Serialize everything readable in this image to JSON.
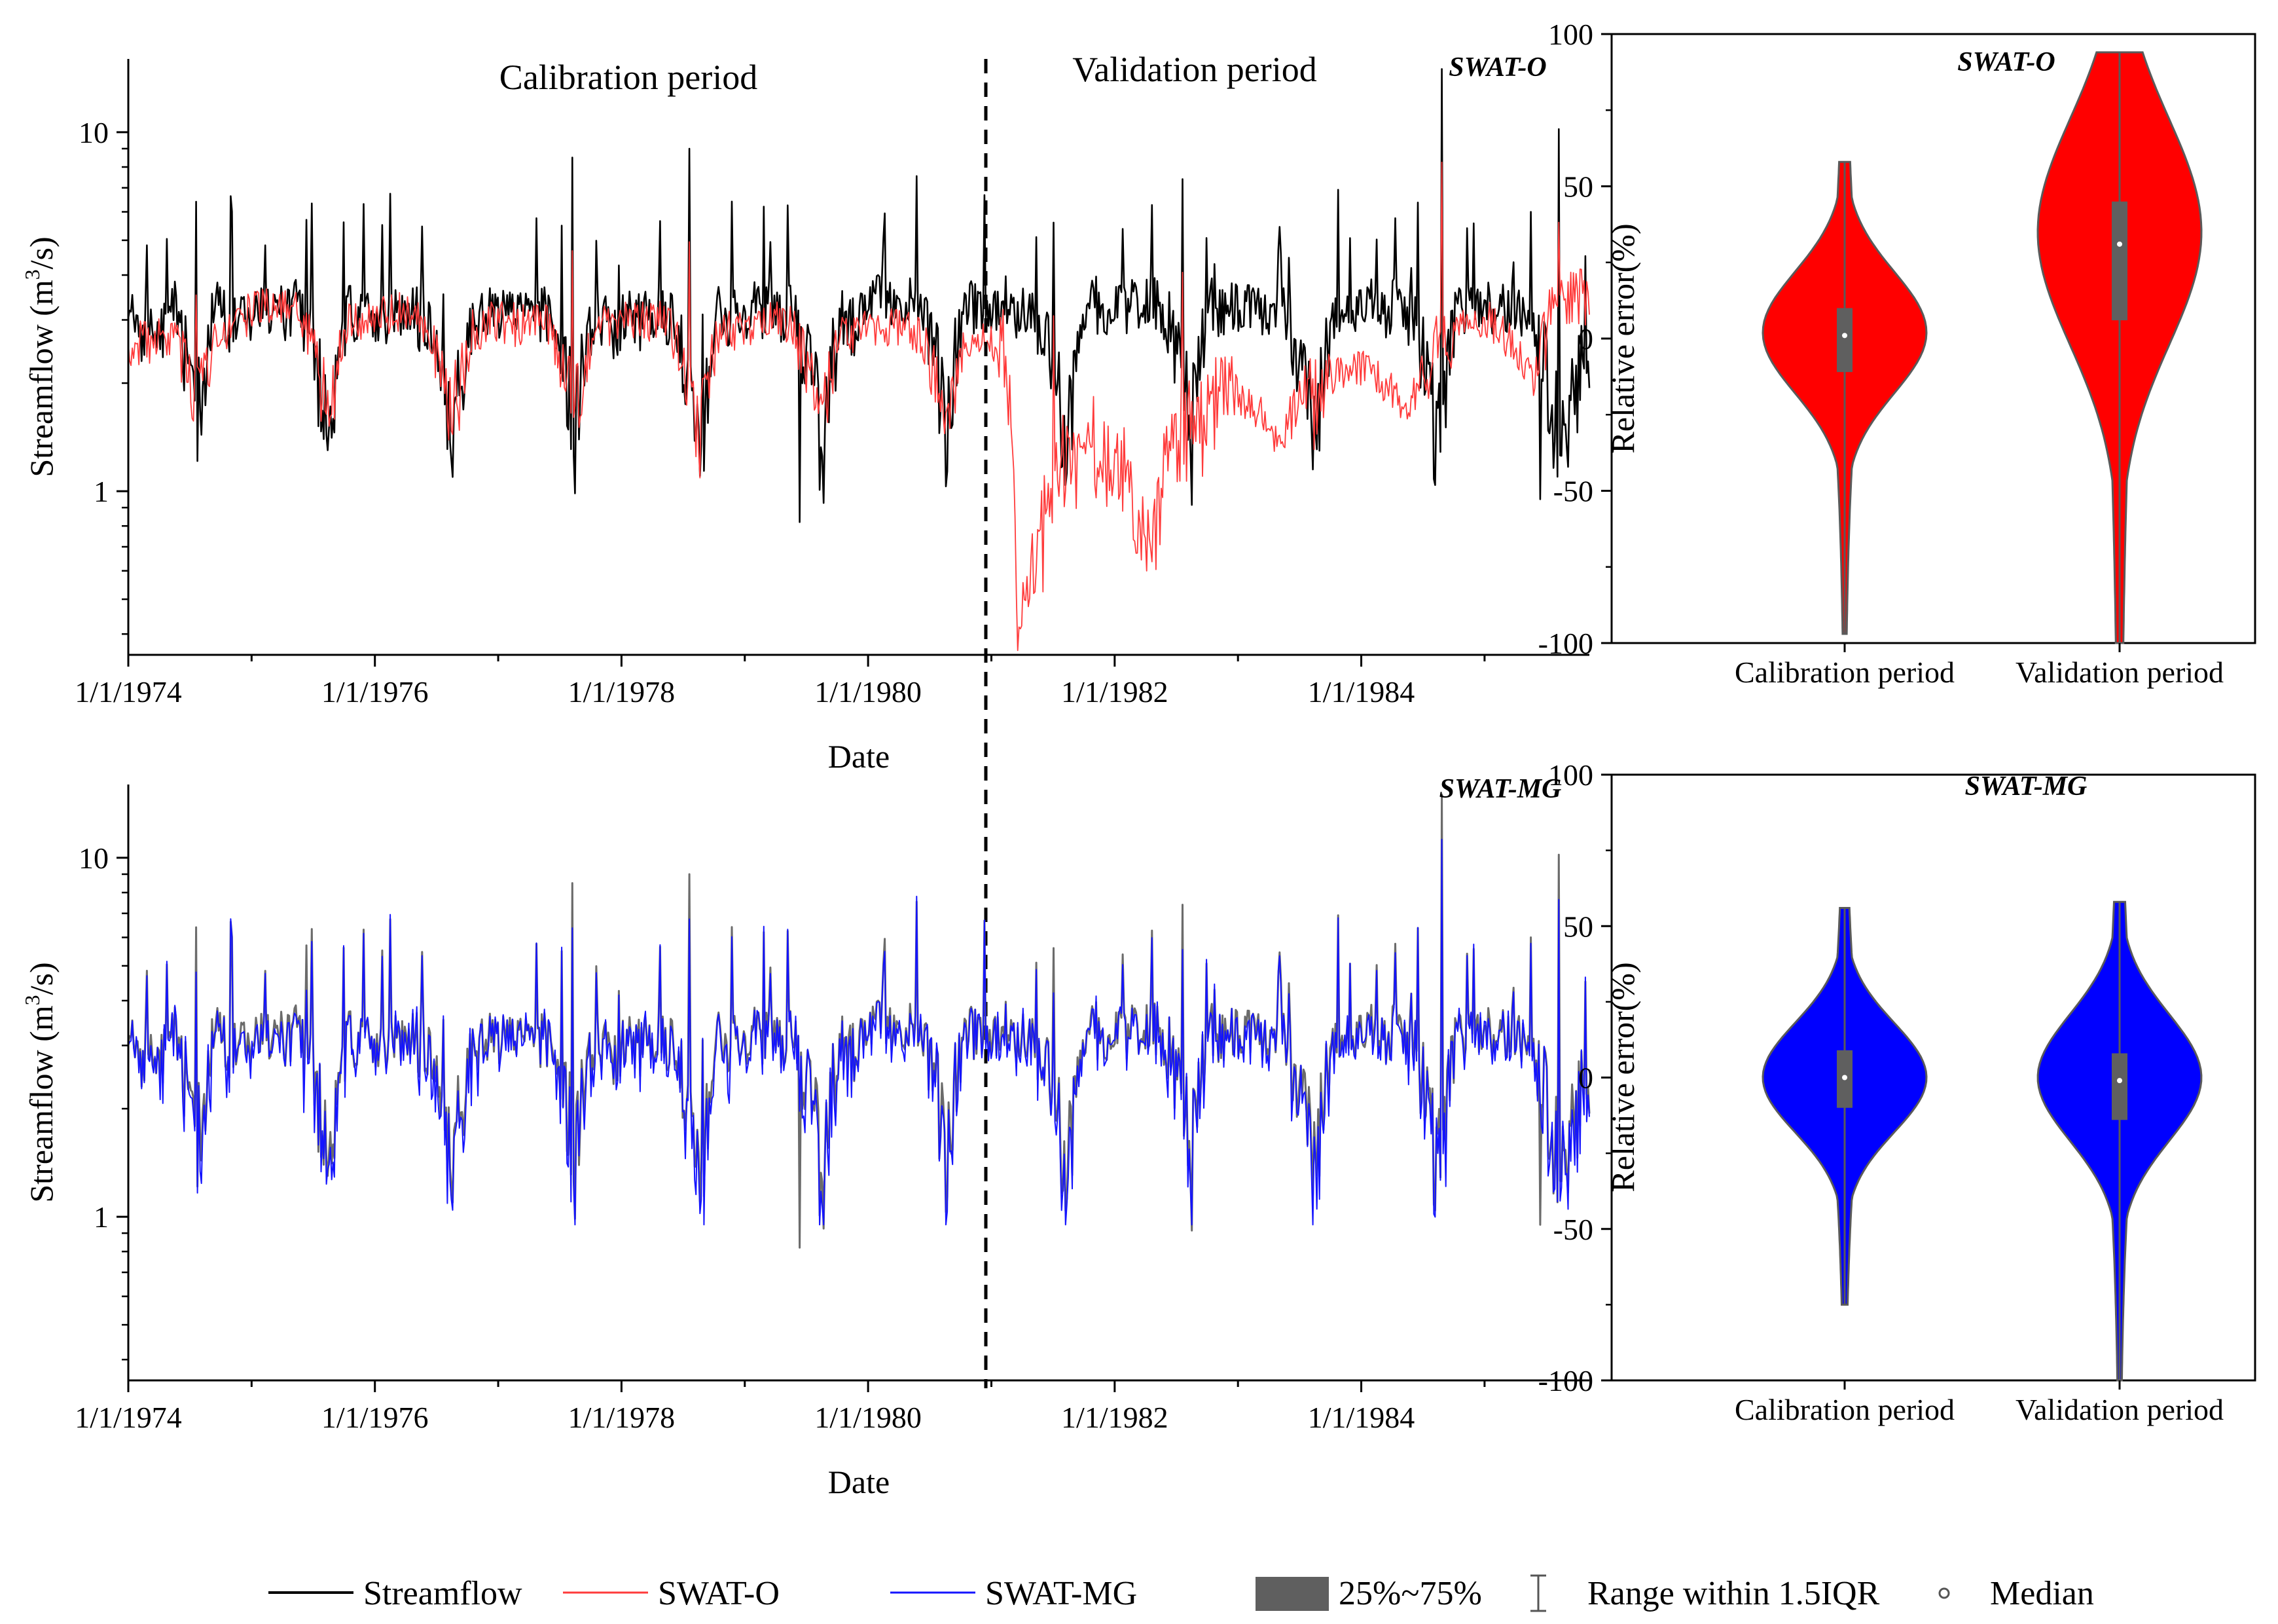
{
  "chart_data": [
    {
      "type": "line",
      "id": "ts-top",
      "model_label": "SWAT-O",
      "xlabel": "Date",
      "ylabel": "Streamflow (m³/s)",
      "ylabel_main": "Streamflow (m",
      "ylabel_sup": "3",
      "ylabel_end": "/s)",
      "yscale": "log",
      "ylim": [
        0.35,
        16
      ],
      "yticks": [
        1,
        10
      ],
      "ytick_labels": [
        "1",
        "10"
      ],
      "xlim": [
        1974,
        1985.85
      ],
      "xticks": [
        1974,
        1976,
        1978,
        1980,
        1982,
        1984
      ],
      "xtick_labels": [
        "1/1/1974",
        "1/1/1976",
        "1/1/1978",
        "1/1/1980",
        "1/1/1982",
        "1/1/1984"
      ],
      "period_split": 1981.0,
      "calibration_label": "Calibration period",
      "validation_label": "Validation period",
      "series": [
        {
          "name": "Streamflow",
          "color": "#000000",
          "monthly_values": [
            3.0,
            2.8,
            3.1,
            2.9,
            3.3,
            2.5,
            1.8,
            2.2,
            3.6,
            2.9,
            3.2,
            3.1,
            3.3,
            3.2,
            3.3,
            3.1,
            3.4,
            2.8,
            2.1,
            1.6,
            2.4,
            3.3,
            2.9,
            3.0,
            3.2,
            3.1,
            3.2,
            3.3,
            3.0,
            2.6,
            2.2,
            1.6,
            2.0,
            2.9,
            3.1,
            3.1,
            3.1,
            2.9,
            3.0,
            3.1,
            3.2,
            2.8,
            2.3,
            1.6,
            2.5,
            3.2,
            3.0,
            2.9,
            3.1,
            3.0,
            3.1,
            3.2,
            3.1,
            2.6,
            2.0,
            1.3,
            2.2,
            3.2,
            3.1,
            3.0,
            3.3,
            3.2,
            3.3,
            3.1,
            3.2,
            2.6,
            2.1,
            1.4,
            2.3,
            3.1,
            2.9,
            3.2,
            3.4,
            3.5,
            3.3,
            3.5,
            3.5,
            3.1,
            2.4,
            1.6,
            2.4,
            3.4,
            3.2,
            3.3,
            3.4,
            3.5,
            3.2,
            3.3,
            3.0,
            2.6,
            2.0,
            1.5,
            2.5,
            3.3,
            3.3,
            3.1,
            3.4,
            3.3,
            3.4,
            3.4,
            3.3,
            2.9,
            2.2,
            1.5,
            2.5,
            3.4,
            3.1,
            3.3,
            3.4,
            3.3,
            3.3,
            3.2,
            3.1,
            2.6,
            1.9,
            1.4,
            2.4,
            3.0,
            3.2,
            3.3,
            3.3,
            3.4,
            3.2,
            3.4,
            3.1,
            2.8,
            2.0,
            1.5,
            2.3,
            3.4,
            3.2,
            3.2,
            3.3,
            3.2,
            3.3,
            3.1,
            3.0,
            2.6,
            1.9,
            1.2,
            1.7,
            2.4,
            2.5,
            3.0
          ],
          "peaks": [
            {
              "x": 1974.55,
              "y": 6.4
            },
            {
              "x": 1975.45,
              "y": 5.7
            },
            {
              "x": 1977.6,
              "y": 8.5
            },
            {
              "x": 1978.55,
              "y": 9.0
            },
            {
              "x": 1979.45,
              "y": 0.82
            },
            {
              "x": 1981.5,
              "y": 5.6
            },
            {
              "x": 1982.55,
              "y": 7.4
            },
            {
              "x": 1984.65,
              "y": 15.0
            },
            {
              "x": 1985.6,
              "y": 10.2
            },
            {
              "x": 1985.45,
              "y": 0.95
            }
          ]
        },
        {
          "name": "SWAT-O",
          "color": "#ff3b3b",
          "monthly_values": [
            2.5,
            2.6,
            2.7,
            2.6,
            2.7,
            2.3,
            1.8,
            2.0,
            2.9,
            2.8,
            3.0,
            3.1,
            3.3,
            3.3,
            3.3,
            3.2,
            3.2,
            2.8,
            2.2,
            1.6,
            2.3,
            3.0,
            3.0,
            3.0,
            3.1,
            3.1,
            3.2,
            3.2,
            2.9,
            2.6,
            2.1,
            1.7,
            2.1,
            2.8,
            2.9,
            3.0,
            3.0,
            2.9,
            3.0,
            3.0,
            3.0,
            2.7,
            2.2,
            1.7,
            2.3,
            2.9,
            2.9,
            2.9,
            3.0,
            2.9,
            3.0,
            3.0,
            3.0,
            2.6,
            2.0,
            1.4,
            2.1,
            2.8,
            2.8,
            2.9,
            2.9,
            2.9,
            3.0,
            3.0,
            2.9,
            2.5,
            2.0,
            1.5,
            2.2,
            2.8,
            2.8,
            2.8,
            2.9,
            2.9,
            2.9,
            2.9,
            2.8,
            2.6,
            2.1,
            1.6,
            2.1,
            2.6,
            2.6,
            2.6,
            2.6,
            2.5,
            0.45,
            0.52,
            0.7,
            0.9,
            1.1,
            1.3,
            1.4,
            1.5,
            1.4,
            1.3,
            1.2,
            1.0,
            0.75,
            0.7,
            1.0,
            1.3,
            1.5,
            1.7,
            1.8,
            1.8,
            1.9,
            1.8,
            1.8,
            1.7,
            1.6,
            1.4,
            1.5,
            1.7,
            1.9,
            1.9,
            2.0,
            2.1,
            2.1,
            2.2,
            2.2,
            2.1,
            2.0,
            1.8,
            1.7,
            2.0,
            2.3,
            2.5,
            2.6,
            2.8,
            2.9,
            3.0,
            3.0,
            2.8,
            2.6,
            2.3,
            2.0,
            2.6,
            3.0,
            3.5,
            3.6,
            3.6
          ]
        },
        {
          "name": "SWAT-MG",
          "color": "#1414ff"
        }
      ]
    },
    {
      "type": "line",
      "id": "ts-bottom",
      "model_label": "SWAT-MG",
      "xlabel": "Date",
      "ylabel": "Streamflow (m³/s)",
      "ylabel_main": "Streamflow (m",
      "ylabel_sup": "3",
      "ylabel_end": "/s)",
      "yscale": "log",
      "ylim": [
        0.35,
        16
      ],
      "yticks": [
        1,
        10
      ],
      "ytick_labels": [
        "1",
        "10"
      ],
      "xlim": [
        1974,
        1985.85
      ],
      "xticks": [
        1974,
        1976,
        1978,
        1980,
        1982,
        1984
      ],
      "xtick_labels": [
        "1/1/1974",
        "1/1/1976",
        "1/1/1978",
        "1/1/1980",
        "1/1/1982",
        "1/1/1984"
      ],
      "period_split": 1981.0,
      "series": [
        {
          "name": "Streamflow",
          "color": "#6b6b6b"
        },
        {
          "name": "SWAT-MG",
          "color": "#1414ff"
        }
      ]
    },
    {
      "type": "violin",
      "id": "violin-top",
      "model_label": "SWAT-O",
      "ylabel": "Relative error(%)",
      "ylim": [
        -100,
        100
      ],
      "yticks": [
        -100,
        -50,
        0,
        50,
        100
      ],
      "ytick_labels": [
        "-100",
        "-50",
        "0",
        "50",
        "100"
      ],
      "categories": [
        "Calibration period",
        "Validation period"
      ],
      "color": "#ff0000",
      "violins": [
        {
          "category": "Calibration period",
          "q1": -11,
          "median": 1,
          "q3": 10,
          "whisker_low": -97,
          "whisker_high": 58,
          "kde_mode": 2
        },
        {
          "category": "Validation period",
          "q1": 6,
          "median": 31,
          "q3": 45,
          "whisker_low": -100,
          "whisker_high": 94,
          "kde_mode": 35
        }
      ]
    },
    {
      "type": "violin",
      "id": "violin-bottom",
      "model_label": "SWAT-MG",
      "ylabel": "Relative error(%)",
      "ylim": [
        -100,
        100
      ],
      "yticks": [
        -100,
        -50,
        0,
        50,
        100
      ],
      "ytick_labels": [
        "-100",
        "-50",
        "0",
        "50",
        "100"
      ],
      "categories": [
        "Calibration period",
        "Validation  period"
      ],
      "color": "#0000ff",
      "violins": [
        {
          "category": "Calibration period",
          "q1": -10,
          "median": 0,
          "q3": 9,
          "whisker_low": -75,
          "whisker_high": 56,
          "kde_mode": 0
        },
        {
          "category": "Validation  period",
          "q1": -14,
          "median": -1,
          "q3": 8,
          "whisker_low": -100,
          "whisker_high": 58,
          "kde_mode": 0
        }
      ]
    }
  ],
  "legend": {
    "items": [
      {
        "label": "Streamflow",
        "color": "#000000"
      },
      {
        "label": "SWAT-O",
        "color": "#ff3b3b"
      },
      {
        "label": "SWAT-MG",
        "color": "#1414ff"
      },
      {
        "label": "25%~75%",
        "color": "#5f5f5f"
      },
      {
        "label": "Range within 1.5IQR",
        "color": "#555555"
      },
      {
        "label": "Median",
        "color": "#555555"
      }
    ]
  }
}
